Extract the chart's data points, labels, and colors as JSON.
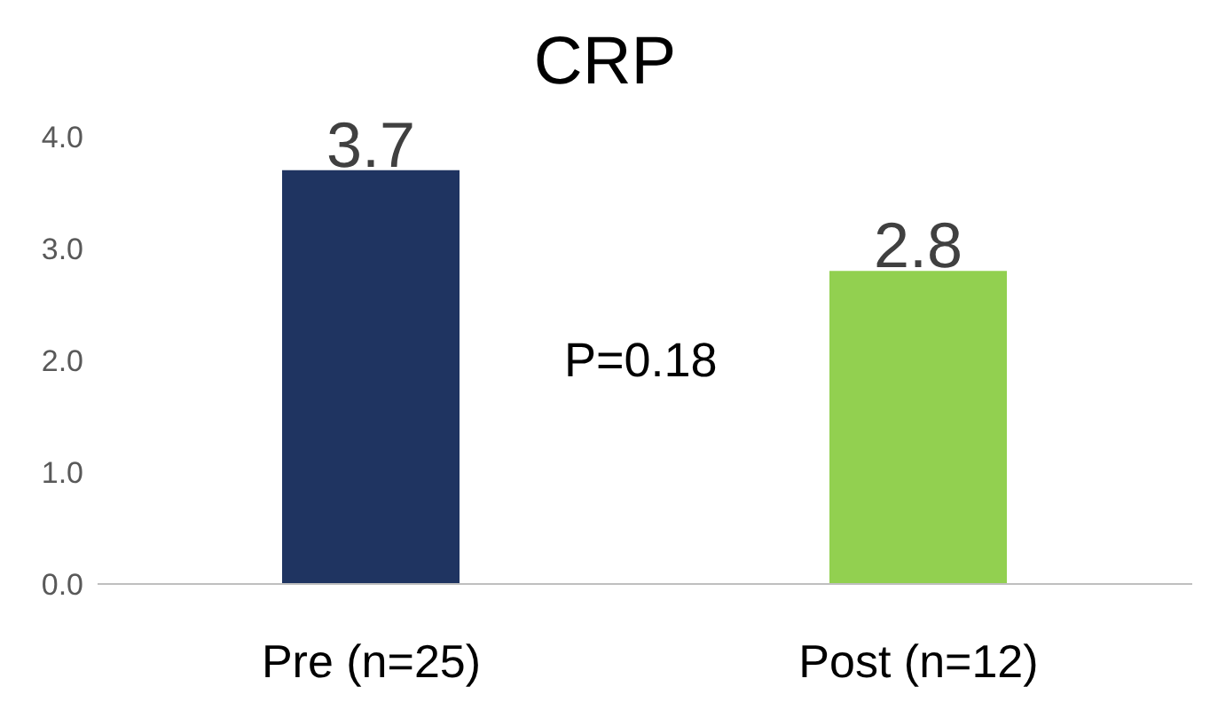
{
  "chart_data": {
    "type": "bar",
    "title": "CRP",
    "categories": [
      "Pre  (n=25)",
      "Post (n=12)"
    ],
    "values": [
      3.7,
      2.8
    ],
    "colors": [
      "#1f3461",
      "#92d050"
    ],
    "ylim": [
      0,
      4
    ],
    "yticks": [
      {
        "value": 0,
        "label": "0.0"
      },
      {
        "value": 1,
        "label": "1.0"
      },
      {
        "value": 2,
        "label": "2.0"
      },
      {
        "value": 3,
        "label": "3.0"
      },
      {
        "value": 4,
        "label": "4.0"
      }
    ],
    "data_labels": true,
    "annotations": [
      "P=0.18"
    ]
  }
}
